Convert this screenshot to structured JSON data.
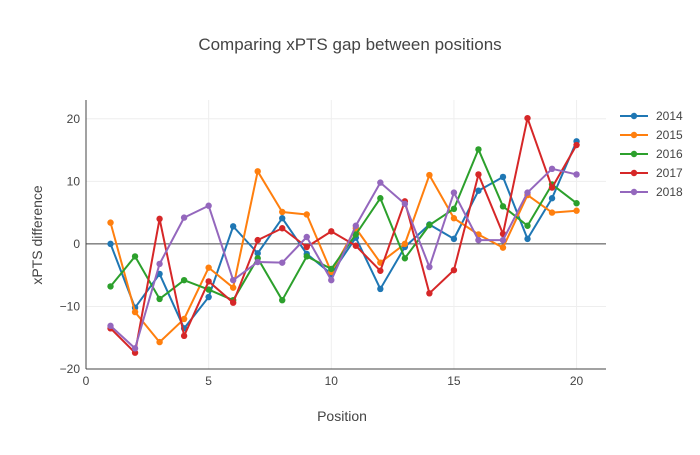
{
  "chart_data": {
    "type": "line",
    "title": "Comparing xPTS gap between positions",
    "xlabel": "Position",
    "ylabel": "xPTS difference",
    "xlim": [
      0,
      21.2
    ],
    "ylim": [
      -20,
      23
    ],
    "xticks": [
      0,
      5,
      10,
      15,
      20
    ],
    "yticks": [
      -20,
      -10,
      0,
      10,
      20
    ],
    "grid": true,
    "legend_position": "top-right",
    "x": [
      1,
      2,
      3,
      4,
      5,
      6,
      7,
      8,
      9,
      10,
      11,
      12,
      13,
      14,
      15,
      16,
      17,
      18,
      19,
      20
    ],
    "series": [
      {
        "name": "2014",
        "color": "#1f77b4",
        "values": [
          0,
          -10.2,
          -4.8,
          -13.5,
          -8.5,
          2.8,
          -1.5,
          4.1,
          -1.6,
          -4.8,
          1.0,
          -7.2,
          -0.5,
          3.1,
          0.8,
          8.5,
          10.7,
          0.8,
          7.3,
          16.4
        ]
      },
      {
        "name": "2015",
        "color": "#ff7f0e",
        "values": [
          3.4,
          -10.9,
          -15.7,
          -12.0,
          -3.8,
          -7.0,
          11.6,
          5.1,
          4.7,
          -4.5,
          2.5,
          -3.0,
          0.0,
          11.0,
          4.1,
          1.5,
          -0.6,
          7.8,
          5.0,
          5.3
        ]
      },
      {
        "name": "2016",
        "color": "#2ca02c",
        "values": [
          -6.8,
          -2.0,
          -8.8,
          -5.8,
          -7.3,
          -9.0,
          -2.3,
          -9.0,
          -2.0,
          -4.0,
          1.5,
          7.3,
          -2.3,
          3.0,
          5.6,
          15.1,
          6.0,
          2.9,
          9.5,
          6.5
        ]
      },
      {
        "name": "2017",
        "color": "#d62728",
        "values": [
          -13.5,
          -17.4,
          4.0,
          -14.7,
          -6.0,
          -9.4,
          0.6,
          2.5,
          -0.5,
          2.0,
          -0.3,
          -4.3,
          6.8,
          -7.9,
          -4.2,
          11.1,
          1.6,
          20.1,
          9.0,
          15.8
        ]
      },
      {
        "name": "2018",
        "color": "#9467bd",
        "values": [
          -13.1,
          -16.7,
          -3.2,
          4.2,
          6.1,
          -5.8,
          -2.9,
          -3.0,
          1.1,
          -5.8,
          2.9,
          9.8,
          6.4,
          -3.7,
          8.2,
          0.6,
          0.6,
          8.2,
          12.0,
          11.1
        ]
      }
    ]
  }
}
